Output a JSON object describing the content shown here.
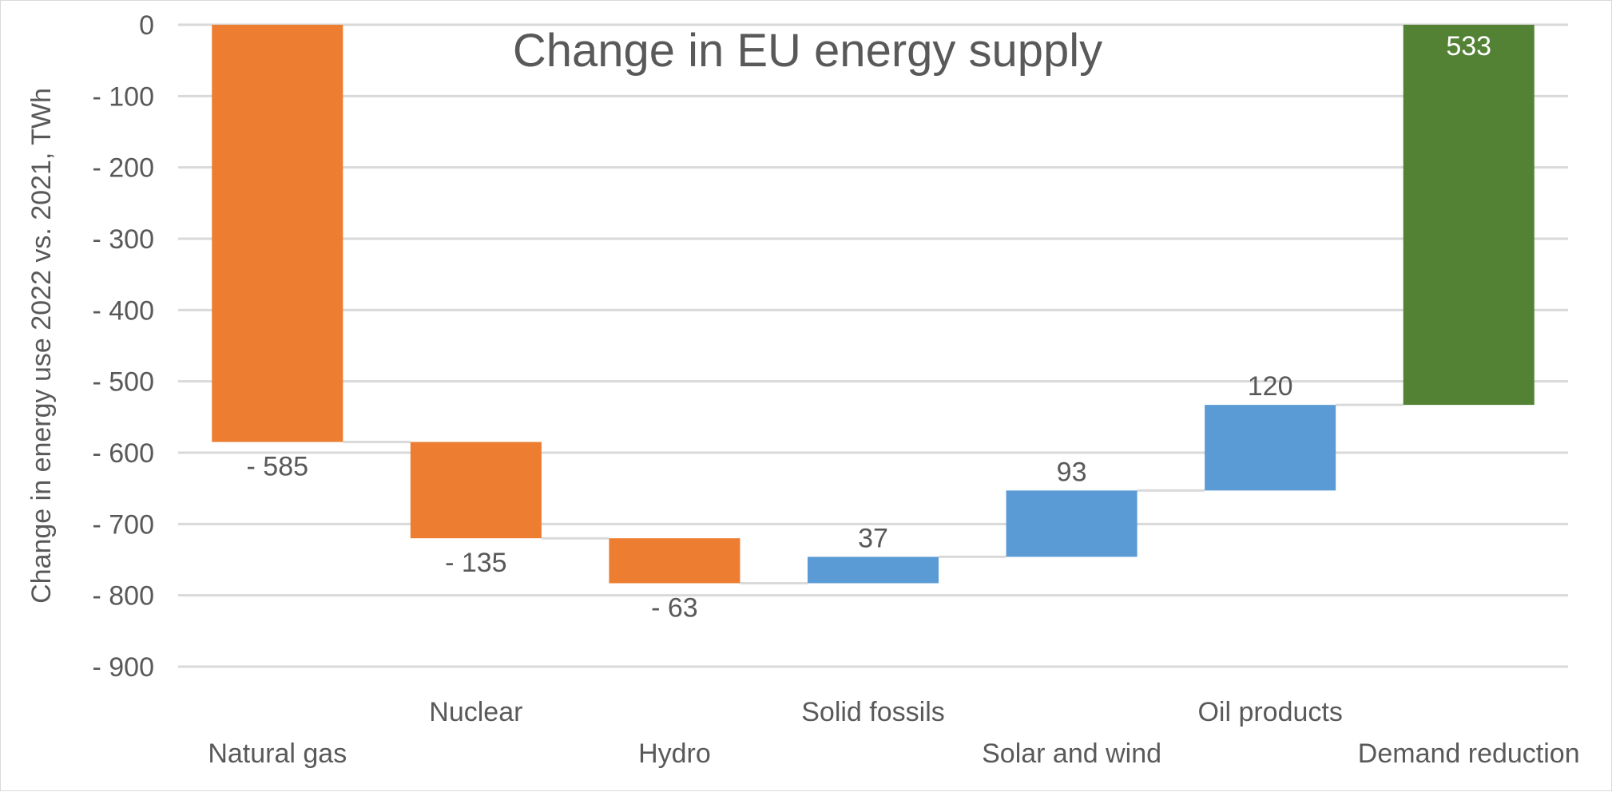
{
  "chart_data": {
    "type": "bar",
    "subtype": "waterfall",
    "title": "Change in EU energy supply",
    "ylabel": "Change in energy use 2022 vs. 2021, TWh",
    "xlabel": "",
    "ylim": [
      -900,
      0
    ],
    "yticks": [
      0,
      -100,
      -200,
      -300,
      -400,
      -500,
      -600,
      -700,
      -800,
      -900
    ],
    "ytick_labels": [
      "0",
      "- 100",
      "- 200",
      "- 300",
      "- 400",
      "- 500",
      "- 600",
      "- 700",
      "- 800",
      "- 900"
    ],
    "grid": true,
    "legend": "none",
    "categories": [
      "Natural gas",
      "Nuclear",
      "Hydro",
      "Solid fossils",
      "Solar and wind",
      "Oil products",
      "Demand reduction"
    ],
    "values": [
      -585,
      -135,
      -63,
      37,
      93,
      120,
      533
    ],
    "value_labels": [
      "- 585",
      "- 135",
      "- 63",
      "37",
      "93",
      "120",
      "533"
    ],
    "colors": {
      "decrease": "#ED7D31",
      "increase": "#5B9BD5",
      "total": "#548235"
    },
    "bar_kind": [
      "decrease",
      "decrease",
      "decrease",
      "increase",
      "increase",
      "increase",
      "total"
    ]
  }
}
